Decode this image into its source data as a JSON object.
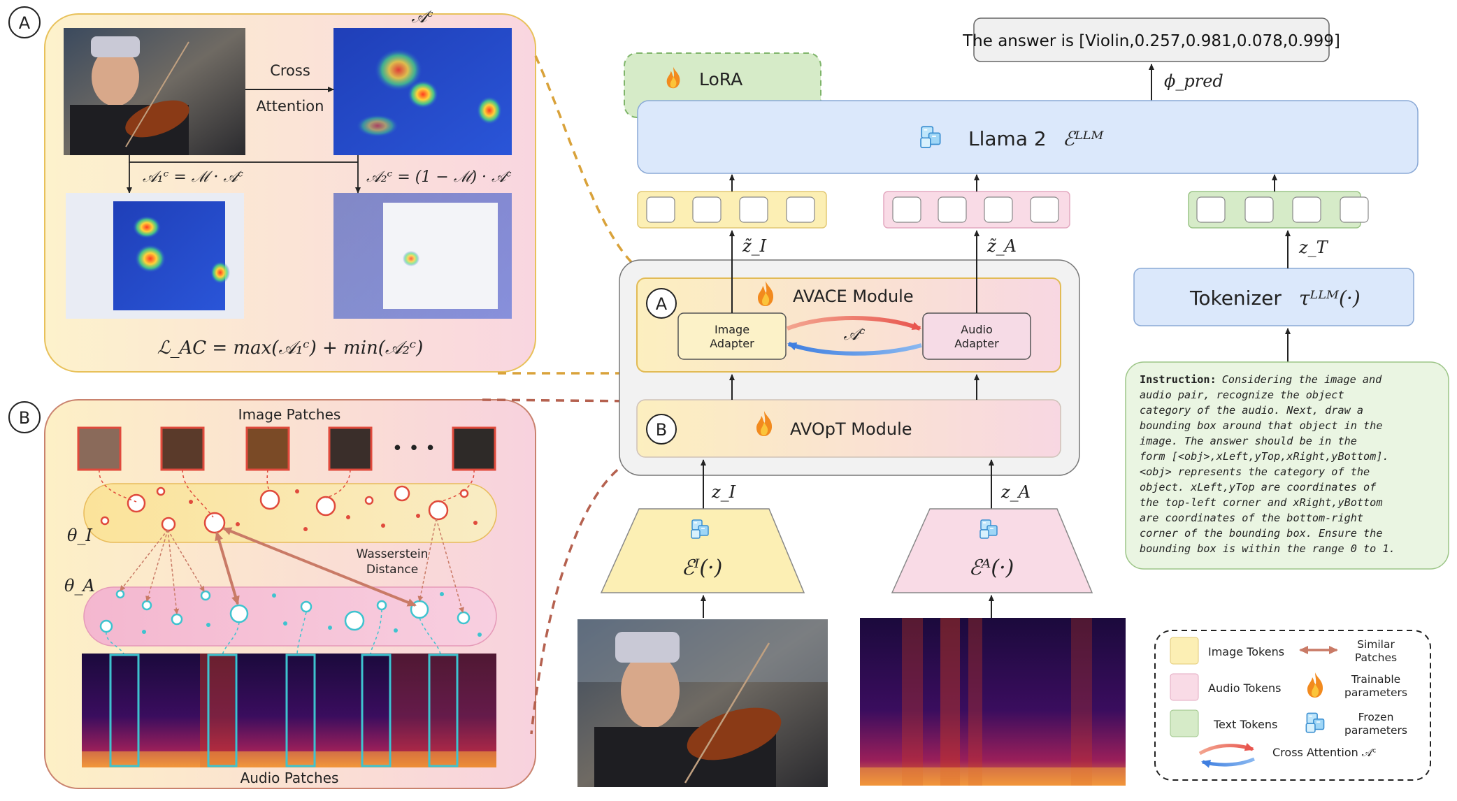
{
  "panel_a": {
    "badge": "A",
    "attn_map_label": "𝒜ᶜ",
    "cross_label": "Cross",
    "attention_label": "Attention",
    "eq_a1": "𝒜₁ᶜ = ℳ · 𝒜ᶜ",
    "eq_a2": "𝒜₂ᶜ = (1 − ℳ) · 𝒜ᶜ",
    "loss": "ℒ_AC = max(𝒜₁ᶜ) + min(𝒜₂ᶜ)"
  },
  "panel_b": {
    "badge": "B",
    "image_patches_title": "Image Patches",
    "ellipsis": "• • •",
    "theta_i": "θ_I",
    "theta_a": "θ_A",
    "wasserstein_1": "Wasserstein",
    "wasserstein_2": "Distance",
    "audio_patches_title": "Audio Patches"
  },
  "pipeline": {
    "answer": "The answer is [Violin,0.257,0.981,0.078,0.999]",
    "phi_pred": "ϕ_pred",
    "lora": "LoRA",
    "llama": "Llama 2",
    "llama_sym": "ℰᴸᴸᴹ",
    "z_tilde_i": "z̃_I",
    "z_tilde_a": "z̃_A",
    "z_t": "z_T",
    "tokenizer": "Tokenizer",
    "tokenizer_sym": "τᴸᴸᴹ(·)",
    "avace_badge": "A",
    "avace_title": "AVACE Module",
    "image_adapter_1": "Image",
    "image_adapter_2": "Adapter",
    "audio_adapter_1": "Audio",
    "audio_adapter_2": "Adapter",
    "ac_label": "𝒜ᶜ",
    "avopt_badge": "B",
    "avopt_title": "AVOpT Module",
    "z_i": "z_I",
    "z_a": "z_A",
    "enc_i": "ℰᴵ(·)",
    "enc_a": "ℰᴬ(·)"
  },
  "instruction": {
    "label": "Instruction:",
    "lines": [
      "Considering the image and",
      "audio pair, recognize the object",
      "category of the audio. Next, draw a",
      "bounding box around that object in the",
      "image. The answer should be in the",
      "form [<obj>,xLeft,yTop,xRight,yBottom].",
      "<obj> represents the category of the",
      "object. xLeft,yTop are coordinates of",
      "the top-left corner and xRight,yBottom",
      "are coordinates of the bottom-right",
      "corner of the bounding box. Ensure the",
      "bounding box is within the range 0 to 1."
    ]
  },
  "legend": {
    "image_tokens": "Image Tokens",
    "audio_tokens": "Audio Tokens",
    "text_tokens": "Text Tokens",
    "similar_1": "Similar",
    "similar_2": "Patches",
    "trainable_1": "Trainable",
    "trainable_2": "parameters",
    "frozen_1": "Frozen",
    "frozen_2": "parameters",
    "cross_attention": "Cross Attention 𝒜ᶜ"
  },
  "colors": {
    "image_token": "#fcefb4",
    "audio_token": "#f9dbe6",
    "text_token": "#d6ebc8",
    "llm_blue": "#dbe8fb",
    "arrow_red": "#ef6b62",
    "arrow_blue": "#4a8fe6",
    "patch_red": "#e04a3c",
    "patch_teal": "#3ec3cf",
    "link_brown": "#c97a66",
    "dash_gold": "#d9a23a",
    "dash_brown": "#b5614f"
  }
}
